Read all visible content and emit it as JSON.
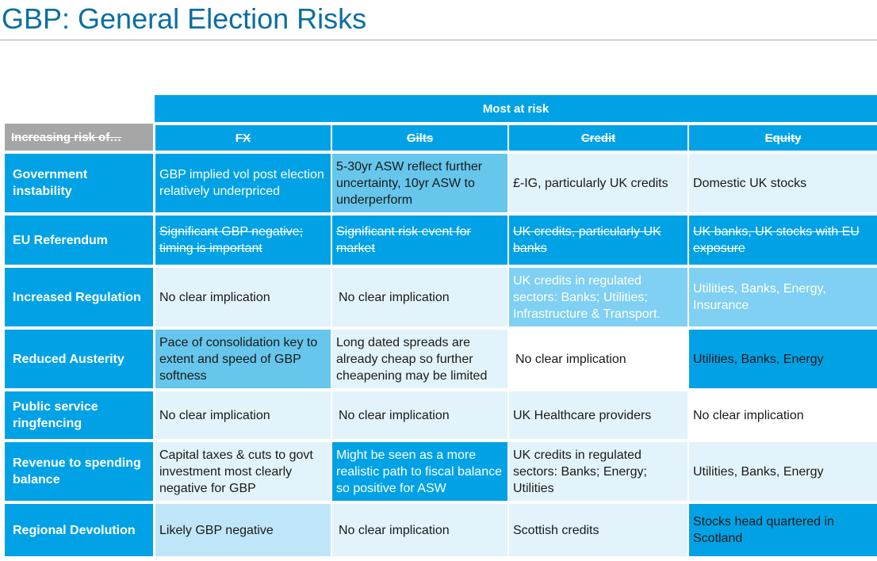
{
  "title": "GBP: General Election Risks",
  "header": {
    "group_label": "Most at risk",
    "corner_label": "Increasing risk of…",
    "columns": [
      "FX",
      "Gilts",
      "Credit",
      "Equity"
    ]
  },
  "rows": [
    {
      "label": "Government instability",
      "cells": [
        "GBP implied vol post election relatively underpriced",
        "5-30yr ASW reflect further uncertainty, 10yr ASW to underperform",
        "£-IG, particularly UK credits",
        "Domestic UK stocks"
      ]
    },
    {
      "label": "EU Referendum",
      "cells": [
        "Significant GBP negative; timing is important",
        "Significant risk event for market",
        "UK credits, particularly UK banks",
        "UK banks, UK stocks with EU exposure"
      ]
    },
    {
      "label": "Increased Regulation",
      "cells": [
        "No clear implication",
        "No clear implication",
        "UK credits in regulated sectors: Banks; Utilities; Infrastructure & Transport.",
        "Utilities, Banks, Energy, Insurance"
      ]
    },
    {
      "label": "Reduced Austerity",
      "cells": [
        "Pace of consolidation key to extent and speed of GBP softness",
        "Long dated spreads are already cheap so further cheapening may be limited",
        "No clear implication",
        "Utilities, Banks, Energy"
      ]
    },
    {
      "label": "Public service ringfencing",
      "cells": [
        "No clear implication",
        "No clear implication",
        "UK Healthcare providers",
        "No clear implication"
      ]
    },
    {
      "label": "Revenue to spending balance",
      "cells": [
        "Capital taxes & cuts to govt investment most clearly negative for GBP",
        "Might be seen as a more realistic path to fiscal balance  so positive for ASW",
        "UK credits in regulated sectors: Banks; Energy; Utilities",
        "Utilities, Banks, Energy"
      ]
    },
    {
      "label": "Regional Devolution",
      "cells": [
        "Likely GBP negative",
        "No clear implication",
        "Scottish credits",
        "Stocks head quartered in Scotland"
      ]
    }
  ]
}
